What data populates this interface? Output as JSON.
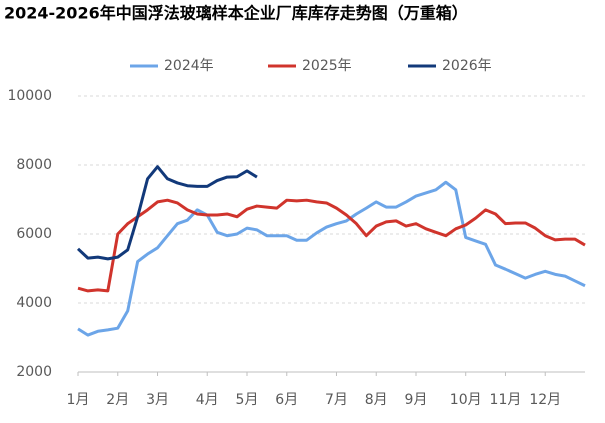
{
  "chart_data": {
    "type": "line",
    "title": "2024-2026年中国浮法玻璃样本企业厂库库存走势图（万重箱）",
    "x": [
      1,
      2,
      3,
      4,
      5,
      6,
      7,
      8,
      9,
      10,
      11,
      12,
      13,
      14,
      15,
      16,
      17,
      18,
      19,
      20,
      21,
      22,
      23,
      24,
      25,
      26,
      27,
      28,
      29,
      30,
      31,
      32,
      33,
      34,
      35,
      36,
      37,
      38,
      39,
      40,
      41,
      42,
      43,
      44,
      45,
      46,
      47,
      48,
      49,
      50,
      51,
      52
    ],
    "xlim": [
      1,
      52
    ],
    "xticks": [
      {
        "value": 1,
        "label": "1月"
      },
      {
        "value": 5,
        "label": "2月"
      },
      {
        "value": 9,
        "label": "3月"
      },
      {
        "value": 14,
        "label": "4月"
      },
      {
        "value": 18,
        "label": "5月"
      },
      {
        "value": 22,
        "label": "6月"
      },
      {
        "value": 27,
        "label": "7月"
      },
      {
        "value": 31,
        "label": "8月"
      },
      {
        "value": 35,
        "label": "9月"
      },
      {
        "value": 40,
        "label": "10月"
      },
      {
        "value": 44,
        "label": "11月"
      },
      {
        "value": 48,
        "label": "12月"
      }
    ],
    "ylim": [
      2000,
      10000
    ],
    "yticks": [
      2000,
      4000,
      6000,
      8000,
      10000
    ],
    "grid": true,
    "legend": "top",
    "series": [
      {
        "name": "2024年",
        "color": "#6ca5e8",
        "values": [
          3250,
          3070,
          3180,
          3220,
          3270,
          3770,
          5200,
          5420,
          5600,
          5950,
          6300,
          6400,
          6700,
          6550,
          6050,
          5950,
          6000,
          6170,
          6120,
          5950,
          5950,
          5950,
          5820,
          5820,
          6030,
          6200,
          6300,
          6380,
          6580,
          6750,
          6930,
          6780,
          6780,
          6930,
          7100,
          7190,
          7280,
          7500,
          7280,
          5900,
          5800,
          5700,
          5100,
          4980,
          4850,
          4720,
          4830,
          4920,
          4830,
          4780,
          4640,
          4500
        ]
      },
      {
        "name": "2025年",
        "color": "#d0342c",
        "values": [
          4430,
          4350,
          4380,
          4350,
          6000,
          6300,
          6500,
          6700,
          6930,
          6980,
          6900,
          6700,
          6580,
          6550,
          6550,
          6580,
          6500,
          6720,
          6810,
          6780,
          6750,
          6980,
          6960,
          6980,
          6930,
          6900,
          6750,
          6550,
          6300,
          5950,
          6230,
          6350,
          6380,
          6230,
          6300,
          6150,
          6050,
          5950,
          6150,
          6260,
          6460,
          6700,
          6580,
          6300,
          6320,
          6320,
          6170,
          5950,
          5830,
          5850,
          5850,
          5680
        ]
      },
      {
        "name": "2026年",
        "color": "#12397a",
        "values": [
          5570,
          5300,
          5330,
          5280,
          5330,
          5540,
          6500,
          7600,
          7950,
          7600,
          7480,
          7400,
          7380,
          7380,
          7550,
          7650,
          7660,
          7830,
          7650,
          null,
          null,
          null,
          null,
          null,
          null,
          null,
          null,
          null,
          null,
          null,
          null,
          null,
          null,
          null,
          null,
          null,
          null,
          null,
          null,
          null,
          null,
          null,
          null,
          null,
          null,
          null,
          null,
          null,
          null,
          null,
          null,
          null
        ]
      }
    ]
  }
}
